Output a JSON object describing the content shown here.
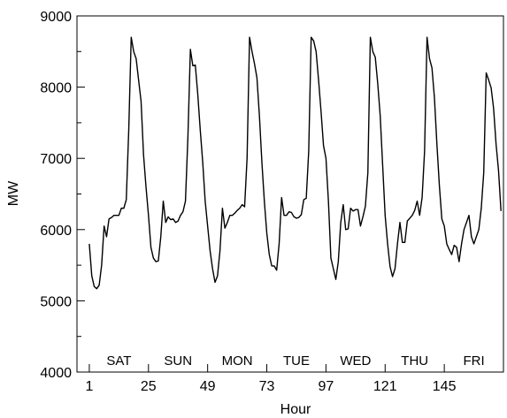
{
  "chart_data": {
    "type": "line",
    "title": "",
    "xlabel": "Hour",
    "ylabel": "MW",
    "xlim": [
      -4,
      169
    ],
    "ylim": [
      4000,
      9000
    ],
    "grid": false,
    "x_ticks": [
      1,
      25,
      49,
      73,
      97,
      121,
      145
    ],
    "x_tick_labels": [
      "1",
      "25",
      "49",
      "73",
      "97",
      "121",
      "145"
    ],
    "y_ticks": [
      4000,
      5000,
      6000,
      7000,
      8000,
      9000
    ],
    "y_tick_labels": [
      "4000",
      "5000",
      "6000",
      "7000",
      "8000",
      "9000"
    ],
    "day_labels": [
      {
        "text": "SAT",
        "x": 13
      },
      {
        "text": "SUN",
        "x": 37
      },
      {
        "text": "MON",
        "x": 61
      },
      {
        "text": "TUE",
        "x": 85
      },
      {
        "text": "WED",
        "x": 109
      },
      {
        "text": "THU",
        "x": 133
      },
      {
        "text": "FRI",
        "x": 157
      }
    ],
    "line_color": "#000000",
    "series": [
      {
        "x": [
          1,
          2,
          3,
          4,
          5,
          6,
          7,
          8,
          9,
          10,
          11,
          12,
          13,
          14,
          15,
          16,
          17,
          18,
          19,
          20,
          21,
          22,
          23,
          24,
          25,
          26,
          27,
          28,
          29,
          30,
          31,
          32,
          33,
          34,
          35,
          36,
          37,
          38,
          39,
          40,
          41,
          42,
          43,
          44,
          45,
          46,
          47,
          48,
          49,
          50,
          51,
          52,
          53,
          54,
          55,
          56,
          57,
          58,
          59,
          60,
          61,
          62,
          63,
          64,
          65,
          66,
          67,
          68,
          69,
          70,
          71,
          72,
          73,
          74,
          75,
          76,
          77,
          78,
          79,
          80,
          81,
          82,
          83,
          84,
          85,
          86,
          87,
          88,
          89,
          90,
          91,
          92,
          93,
          94,
          95,
          96,
          97,
          98,
          99,
          100,
          101,
          102,
          103,
          104,
          105,
          106,
          107,
          108,
          109,
          110,
          111,
          112,
          113,
          114,
          115,
          116,
          117,
          118,
          119,
          120,
          121,
          122,
          123,
          124,
          125,
          126,
          127,
          128,
          129,
          130,
          131,
          132,
          133,
          134,
          135,
          136,
          137,
          138,
          139,
          140,
          141,
          142,
          143,
          144,
          145,
          146,
          147,
          148,
          149,
          150,
          151,
          152,
          153,
          154,
          155,
          156,
          157,
          158,
          159,
          160,
          161,
          162,
          163,
          164,
          165,
          166,
          167,
          168
        ],
        "y": [
          5800,
          5350,
          5200,
          5170,
          5220,
          5500,
          6050,
          5900,
          6150,
          6170,
          6200,
          6200,
          6200,
          6300,
          6300,
          6420,
          7400,
          8700,
          8500,
          8400,
          8100,
          7800,
          7050,
          6600,
          6200,
          5750,
          5600,
          5550,
          5560,
          5900,
          6400,
          6100,
          6180,
          6140,
          6150,
          6100,
          6120,
          6200,
          6250,
          6400,
          7300,
          8530,
          8300,
          8310,
          7900,
          7400,
          6950,
          6400,
          6050,
          5700,
          5450,
          5260,
          5350,
          5700,
          6300,
          6020,
          6100,
          6200,
          6200,
          6230,
          6270,
          6300,
          6350,
          6320,
          7000,
          8700,
          8500,
          8330,
          8130,
          7600,
          6950,
          6400,
          5950,
          5650,
          5490,
          5490,
          5430,
          5800,
          6450,
          6200,
          6200,
          6250,
          6240,
          6180,
          6160,
          6170,
          6210,
          6420,
          6440,
          7100,
          8700,
          8650,
          8500,
          8100,
          7660,
          7180,
          7000,
          6400,
          5600,
          5450,
          5300,
          5550,
          6100,
          6350,
          6000,
          6010,
          6300,
          6260,
          6280,
          6280,
          6050,
          6180,
          6330,
          6800,
          8700,
          8500,
          8420,
          8050,
          7600,
          6900,
          6200,
          5800,
          5480,
          5340,
          5450,
          5800,
          6100,
          5820,
          5820,
          6120,
          6160,
          6200,
          6270,
          6400,
          6200,
          6450,
          7100,
          8700,
          8400,
          8270,
          7850,
          7200,
          6620,
          6150,
          6050,
          5800,
          5720,
          5650,
          5780,
          5750,
          5550,
          5800,
          6000,
          6100,
          6200,
          5900,
          5800,
          5900,
          6000,
          6300,
          6800,
          8200,
          8100,
          7990,
          7700,
          7200,
          6830,
          6260
        ]
      }
    ]
  }
}
